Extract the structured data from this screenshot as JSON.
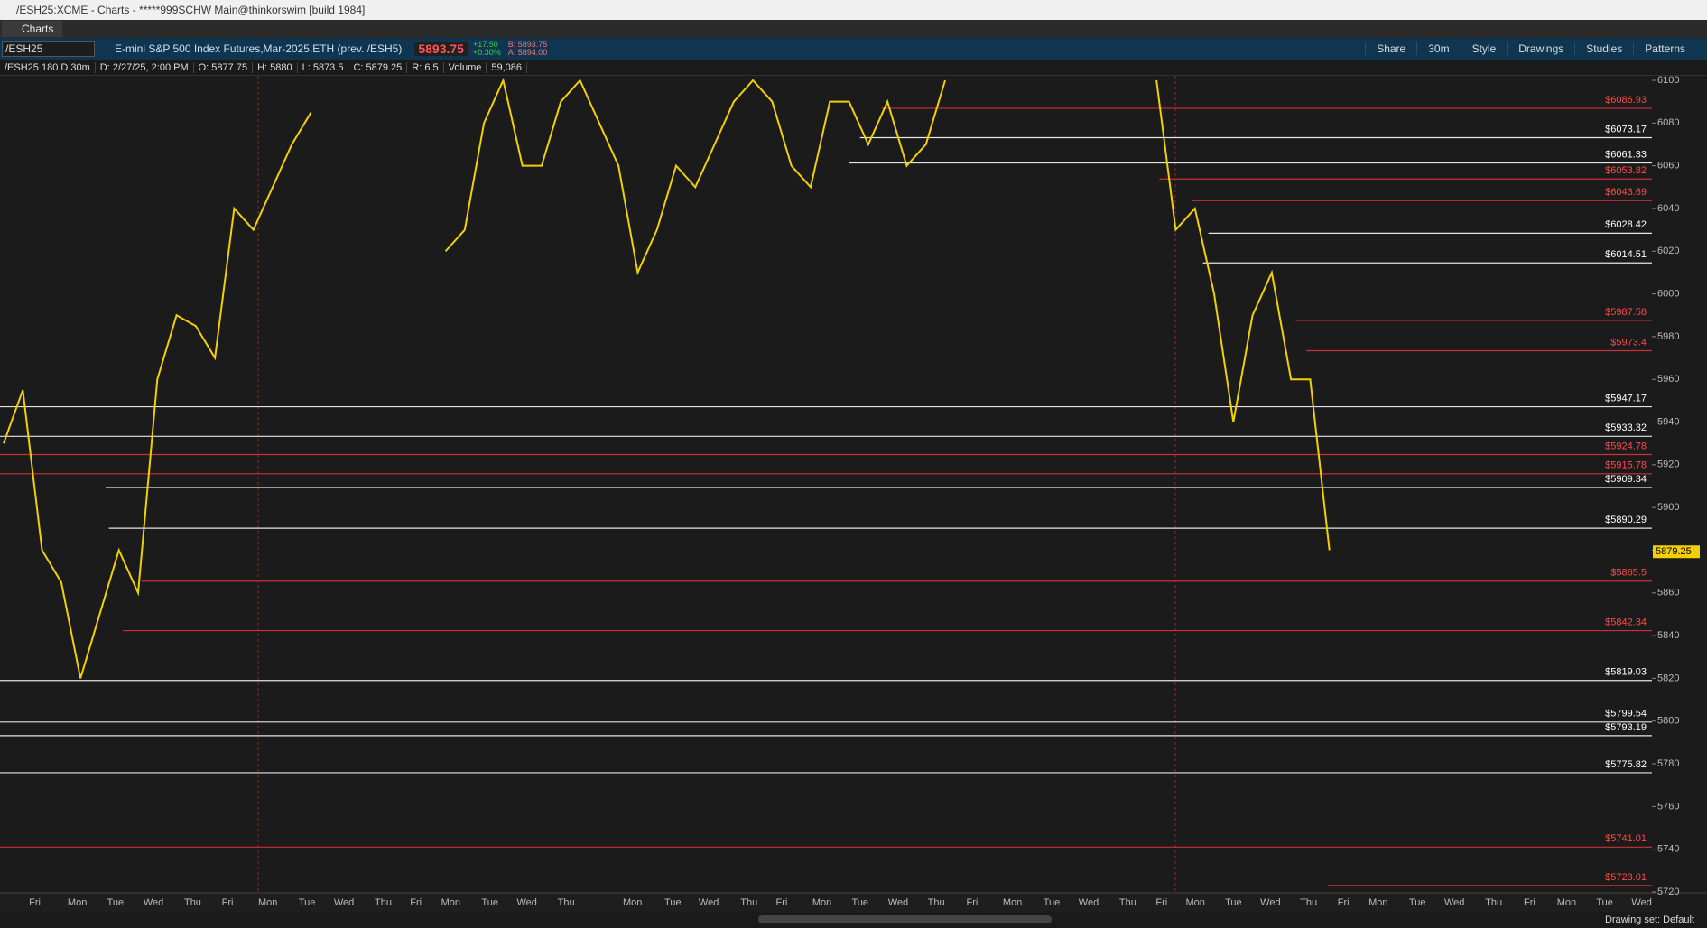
{
  "window": {
    "title": "/ESH25:XCME - Charts - *****999SCHW Main@thinkorswim [build 1984]",
    "tab": "Charts"
  },
  "toolbar": {
    "symbol": "/ESH25",
    "description": "E-mini S&P 500 Index Futures,Mar-2025,ETH (prev. /ESH5)",
    "last": "5893.75",
    "change": "+17.50",
    "change_pct": "+0.30%",
    "bid": "B: 5893.75",
    "ask": "A: 5894.00",
    "buttons": [
      "Share",
      "30m",
      "Style",
      "Drawings",
      "Studies",
      "Patterns"
    ]
  },
  "info_bar": [
    "/ESH25 180 D 30m",
    "D: 2/27/25, 2:00 PM",
    "O: 5877.75",
    "H: 5880",
    "L: 5873.5",
    "C: 5879.25",
    "R: 6.5",
    "Volume",
    "59,086"
  ],
  "status_bar": {
    "drawing_set": "Drawing set: Default"
  },
  "chart_data": {
    "type": "line",
    "color": "#f2d000",
    "values": [
      5930,
      5955,
      5880,
      5865,
      5820,
      5850,
      5880,
      5860,
      5960,
      5990,
      5985,
      5970,
      6040,
      6030,
      6050,
      6070,
      6085,
      null,
      null,
      null,
      null,
      null,
      null,
      6020,
      6030,
      6080,
      6100,
      6060,
      6060,
      6090,
      6100,
      6080,
      6060,
      6010,
      6030,
      6060,
      6050,
      6070,
      6090,
      6100,
      6090,
      6060,
      6050,
      6090,
      6090,
      6070,
      6090,
      6060,
      6070,
      6100,
      null,
      null,
      null,
      null,
      null,
      null,
      null,
      null,
      null,
      null,
      6100,
      6030,
      6040,
      6000,
      5940,
      5990,
      6010,
      5960,
      5960,
      5880
    ],
    "day_labels": [
      "Fri",
      "Mon",
      "Tue",
      "Wed",
      "Thu",
      "Fri",
      "Mon",
      "Tue",
      "Wed",
      "Thu",
      "Fri",
      "Mon",
      "Tue",
      "Wed",
      "Thu",
      "Mon",
      "Tue",
      "Wed",
      "Thu",
      "Fri",
      "Mon",
      "Tue",
      "Wed",
      "Thu",
      "Fri",
      "Mon",
      "Tue",
      "Wed",
      "Thu",
      "Fri",
      "Mon",
      "Tue",
      "Wed",
      "Thu",
      "Fri",
      "Mon",
      "Tue",
      "Wed",
      "Thu",
      "Fri",
      "Mon",
      "Tue",
      "Wed"
    ],
    "ylim": [
      5720,
      6100
    ],
    "yticks": [
      5720,
      5740,
      5760,
      5780,
      5800,
      5820,
      5840,
      5860,
      5880,
      5900,
      5920,
      5940,
      5960,
      5980,
      6000,
      6020,
      6040,
      6060,
      6080,
      6100
    ],
    "last_price": 5879.25,
    "levels": [
      {
        "value": 6086.93,
        "label": "$6086.93",
        "color": "#c8323a"
      },
      {
        "value": 6073.17,
        "label": "$6073.17",
        "color": "#e6e6e6"
      },
      {
        "value": 6061.33,
        "label": "$6061.33",
        "color": "#e6e6e6"
      },
      {
        "value": 6053.82,
        "label": "$6053.82",
        "color": "#c8323a"
      },
      {
        "value": 6043.69,
        "label": "$6043.69",
        "color": "#c8323a"
      },
      {
        "value": 6028.42,
        "label": "$6028.42",
        "color": "#e6e6e6"
      },
      {
        "value": 6014.51,
        "label": "$6014.51",
        "color": "#e6e6e6"
      },
      {
        "value": 5987.58,
        "label": "$5987.58",
        "color": "#c8323a"
      },
      {
        "value": 5973.4,
        "label": "$5973.4",
        "color": "#c8323a"
      },
      {
        "value": 5947.17,
        "label": "$5947.17",
        "color": "#e6e6e6"
      },
      {
        "value": 5933.32,
        "label": "$5933.32",
        "color": "#e6e6e6"
      },
      {
        "value": 5924.78,
        "label": "$5924.78",
        "color": "#c8323a"
      },
      {
        "value": 5915.78,
        "label": "$5915.78",
        "color": "#c8323a"
      },
      {
        "value": 5909.34,
        "label": "$5909.34",
        "color": "#e6e6e6"
      },
      {
        "value": 5890.29,
        "label": "$5890.29",
        "color": "#e6e6e6"
      },
      {
        "value": 5865.5,
        "label": "$5865.5",
        "color": "#c8323a"
      },
      {
        "value": 5842.34,
        "label": "$5842.34",
        "color": "#c8323a"
      },
      {
        "value": 5819.03,
        "label": "$5819.03",
        "color": "#e6e6e6"
      },
      {
        "value": 5799.54,
        "label": "$5799.54",
        "color": "#e6e6e6"
      },
      {
        "value": 5793.19,
        "label": "$5793.19",
        "color": "#e6e6e6"
      },
      {
        "value": 5775.82,
        "label": "$5775.82",
        "color": "#e6e6e6"
      },
      {
        "value": 5741.01,
        "label": "$5741.01",
        "color": "#c8323a"
      },
      {
        "value": 5723.01,
        "label": "$5723.01",
        "color": "#c8323a"
      }
    ]
  }
}
